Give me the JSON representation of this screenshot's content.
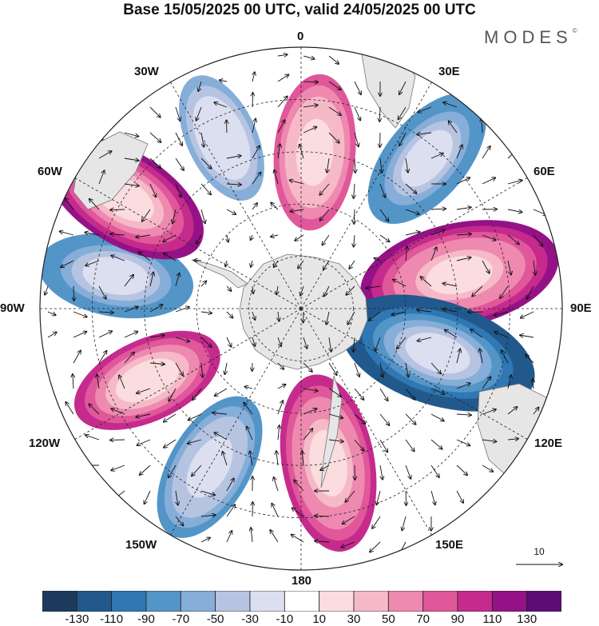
{
  "title": "Base 15/05/2025 00 UTC, valid 24/05/2025 00 UTC",
  "brand": "MODES",
  "brand_mark": "©",
  "longitude_labels": {
    "lon_0": "0",
    "lon_30e": "30E",
    "lon_60e": "60E",
    "lon_90e": "90E",
    "lon_120e": "120E",
    "lon_150e": "150E",
    "lon_180": "180",
    "lon_150w": "150W",
    "lon_120w": "120W",
    "lon_90w": "90W",
    "lon_60w": "60W",
    "lon_30w": "30W"
  },
  "reference_vector": {
    "label": "10"
  },
  "colorbar": {
    "ticks": [
      "-130",
      "-110",
      "-90",
      "-70",
      "-50",
      "-30",
      "-10",
      "10",
      "30",
      "50",
      "70",
      "90",
      "110",
      "130"
    ],
    "colors": [
      "#1d3b5c",
      "#22598d",
      "#2f78b3",
      "#5495c8",
      "#86aed9",
      "#b6c4e2",
      "#dcdff0",
      "#ffffff",
      "#fbdcdf",
      "#f6b9c8",
      "#ee89b0",
      "#e0579a",
      "#c52b8c",
      "#951286",
      "#5c0e75"
    ]
  },
  "map_data": {
    "projection": "south-polar-stereographic",
    "fields": [
      {
        "lon": 5,
        "colat": 0.6,
        "value": 80
      },
      {
        "lon": 40,
        "colat": 0.75,
        "value": -90
      },
      {
        "lon": 78,
        "colat": 0.62,
        "value": 120
      },
      {
        "lon": 108,
        "colat": 0.55,
        "value": -130
      },
      {
        "lon": 170,
        "colat": 0.6,
        "value": 100
      },
      {
        "lon": -150,
        "colat": 0.7,
        "value": -80
      },
      {
        "lon": -115,
        "colat": 0.65,
        "value": 90
      },
      {
        "lon": -80,
        "colat": 0.72,
        "value": -90
      },
      {
        "lon": -58,
        "colat": 0.8,
        "value": 110
      },
      {
        "lon": -25,
        "colat": 0.72,
        "value": -60
      }
    ]
  },
  "colors": {
    "land": "#e6e6e6",
    "coast": "#777777",
    "grid": "#222222"
  }
}
